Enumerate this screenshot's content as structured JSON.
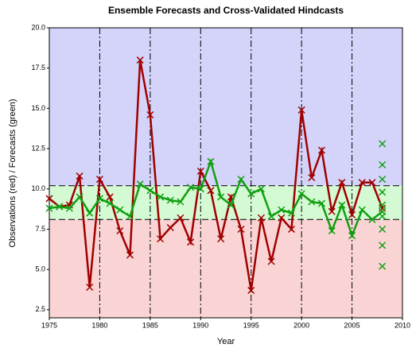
{
  "chart_data": {
    "type": "line",
    "title": "Ensemble Forecasts and Cross-Validated Hindcasts",
    "x_label": "Year",
    "y_label": "Observations (red) / Forecasts (green)",
    "xlim": [
      1975,
      2010
    ],
    "xticks": [
      1975,
      1980,
      1985,
      1990,
      1995,
      2000,
      2005,
      2010
    ],
    "ylim": [
      2,
      20
    ],
    "yticks": [
      2.5,
      {
        "value": 5,
        "label": "5.0"
      },
      7.5,
      {
        "value": 10,
        "label": "10.0"
      },
      12.5,
      {
        "value": 15,
        "label": "15.0"
      },
      17.5,
      {
        "value": 20,
        "label": "20.0"
      }
    ],
    "grid": true,
    "bands": [
      {
        "from": 10.2,
        "to": 20,
        "color": "#d4d4fa"
      },
      {
        "from": 8.1,
        "to": 10.2,
        "color": "#d4fad4"
      },
      {
        "from": 2,
        "to": 8.1,
        "color": "#fad4d4"
      }
    ],
    "x": [
      1975,
      1976,
      1977,
      1978,
      1979,
      1980,
      1981,
      1982,
      1983,
      1984,
      1985,
      1986,
      1987,
      1988,
      1989,
      1990,
      1991,
      1992,
      1993,
      1994,
      1995,
      1996,
      1997,
      1998,
      1999,
      2000,
      2001,
      2002,
      2003,
      2004,
      2005,
      2006,
      2007,
      2008
    ],
    "series": [
      {
        "name": "Observations",
        "color": "#a00000",
        "values": [
          9.4,
          8.9,
          9.0,
          10.8,
          3.9,
          10.6,
          9.5,
          7.4,
          5.9,
          18.0,
          14.6,
          6.9,
          7.6,
          8.2,
          6.7,
          11.1,
          9.9,
          6.9,
          9.5,
          7.5,
          3.7,
          8.2,
          5.5,
          8.2,
          7.5,
          14.9,
          10.7,
          12.4,
          8.6,
          10.4,
          8.4,
          10.4,
          10.4,
          8.8
        ]
      },
      {
        "name": "Forecasts",
        "color": "#10a010",
        "values": [
          8.8,
          8.9,
          8.8,
          9.5,
          8.5,
          9.4,
          9.1,
          8.7,
          8.3,
          10.3,
          9.9,
          9.5,
          9.3,
          9.2,
          10.1,
          10.0,
          11.7,
          9.5,
          9.0,
          10.6,
          9.7,
          10.0,
          8.3,
          8.7,
          8.5,
          9.7,
          9.2,
          9.1,
          7.4,
          9.0,
          7.1,
          8.7,
          8.1,
          8.6
        ]
      }
    ],
    "ensemble": {
      "color": "#10a010",
      "x": [
        2008,
        2008,
        2008,
        2008,
        2008,
        2008,
        2008,
        2008,
        2008
      ],
      "values": [
        12.8,
        11.5,
        10.6,
        9.8,
        9.0,
        8.3,
        7.5,
        6.5,
        5.2
      ]
    }
  }
}
